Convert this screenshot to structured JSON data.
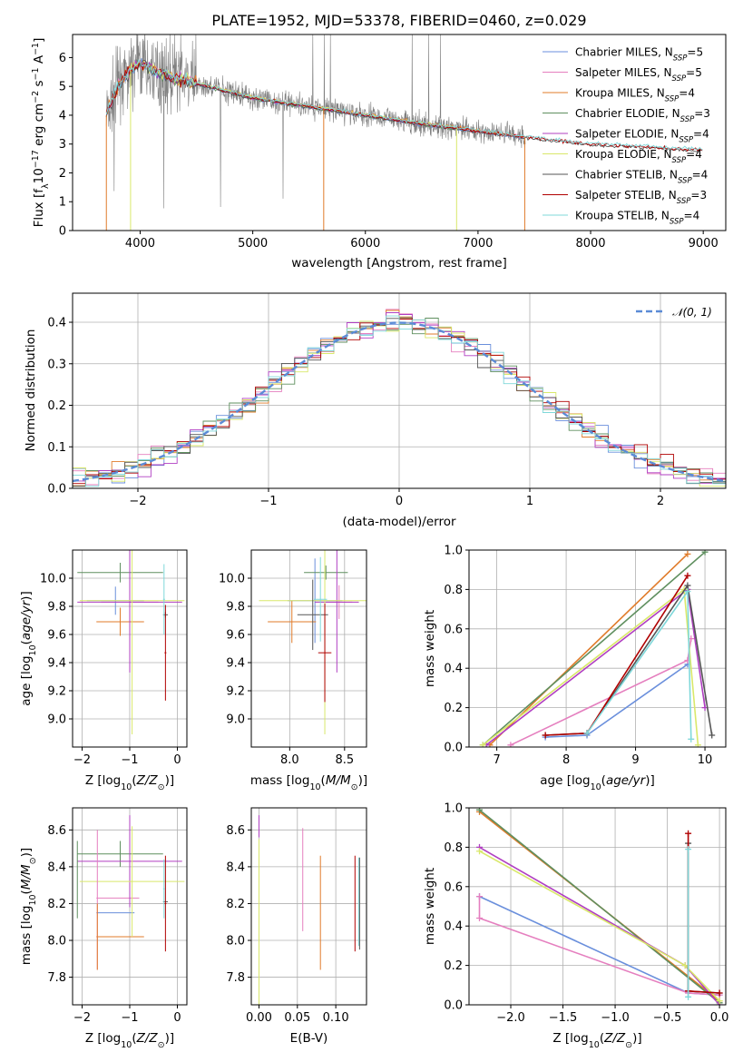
{
  "figure": {
    "title": "PLATE=1952, MJD=53378, FIBERID=0460, z=0.029"
  },
  "series_colors": {
    "Chabrier MILES": "#6a8fdc",
    "Salpeter MILES": "#e57fbf",
    "Kroupa MILES": "#e07b2a",
    "Chabrier ELODIE": "#5f8f5f",
    "Salpeter ELODIE": "#b03fc2",
    "Kroupa ELODIE": "#d9e86a",
    "Chabrier STELIB": "#555555",
    "Salpeter STELIB": "#b00000",
    "Kroupa STELIB": "#7fd8da",
    "data": "#808080"
  },
  "chart_data": [
    {
      "id": "spectrum",
      "type": "line",
      "xlabel": "wavelength [Angstrom, rest frame]",
      "ylabel": "Flux [f_λ 10^-17 erg cm^-2 s^-1 A^-1]",
      "xlim": [
        3400,
        9200
      ],
      "ylim": [
        0,
        6.8
      ],
      "xticks": [
        4000,
        5000,
        6000,
        7000,
        8000,
        9000
      ],
      "yticks": [
        0,
        1,
        2,
        3,
        4,
        5,
        6
      ],
      "grid": false,
      "legend_position": "upper-right",
      "legend": [
        {
          "model": "Chabrier MILES",
          "nssp": "5"
        },
        {
          "model": "Salpeter MILES",
          "nssp": "5"
        },
        {
          "model": "Kroupa MILES",
          "nssp": "4"
        },
        {
          "model": "Chabrier ELODIE",
          "nssp": "3"
        },
        {
          "model": "Salpeter ELODIE",
          "nssp": "4"
        },
        {
          "model": "Kroupa ELODIE",
          "nssp": "4"
        },
        {
          "model": "Chabrier STELIB",
          "nssp": "4"
        },
        {
          "model": "Salpeter STELIB",
          "nssp": "3"
        },
        {
          "model": "Kroupa STELIB",
          "nssp": "4"
        }
      ],
      "model_continuum": [
        [
          3700,
          4.0
        ],
        [
          3800,
          5.0
        ],
        [
          3900,
          5.5
        ],
        [
          4000,
          5.8
        ],
        [
          4100,
          5.6
        ],
        [
          4300,
          5.3
        ],
        [
          4500,
          5.1
        ],
        [
          4700,
          4.9
        ],
        [
          5000,
          4.6
        ],
        [
          5500,
          4.3
        ],
        [
          6000,
          4.0
        ],
        [
          6500,
          3.7
        ],
        [
          7000,
          3.45
        ],
        [
          7400,
          3.25
        ],
        [
          8000,
          3.0
        ],
        [
          8500,
          2.9
        ],
        [
          9000,
          2.8
        ]
      ],
      "data_range": [
        3700,
        7420
      ],
      "model_ranges": {
        "MILES": [
          3700,
          7420
        ],
        "ELODIE": [
          3900,
          6800
        ],
        "STELIB": [
          3700,
          9000
        ]
      }
    },
    {
      "id": "residuals",
      "type": "line",
      "xlabel": "(data-model)/error",
      "ylabel": "Normed distribution",
      "xlim": [
        -2.5,
        2.5
      ],
      "ylim": [
        0,
        0.47
      ],
      "xticks": [
        -2,
        -1,
        0,
        1,
        2
      ],
      "yticks": [
        0.0,
        0.1,
        0.2,
        0.3,
        0.4
      ],
      "grid": true,
      "legend_position": "upper-right",
      "gaussian_label": "𝒩(0, 1)",
      "bin_width": 0.1
    },
    {
      "id": "age_vs_Z",
      "type": "scatter",
      "xlabel": "Z [log10(Z/Z⊙)]",
      "ylabel": "age [log10(age/yr)]",
      "xlim": [
        -2.2,
        0.2
      ],
      "ylim": [
        8.8,
        10.2
      ],
      "xticks": [
        -2,
        -1,
        0
      ],
      "yticks": [
        9.0,
        9.2,
        9.4,
        9.6,
        9.8,
        10.0
      ],
      "grid": true,
      "errorbars": [
        {
          "model": "Chabrier MILES",
          "x": -1.3,
          "xerr": 0.6,
          "y": 9.84,
          "yerr": 0.1
        },
        {
          "model": "Salpeter MILES",
          "x": -1.0,
          "xerr": 0.6,
          "y": 9.83,
          "yerr": 0.15
        },
        {
          "model": "Kroupa MILES",
          "x": -1.2,
          "xerr": 0.5,
          "y": 9.69,
          "yerr": 0.1
        },
        {
          "model": "Chabrier ELODIE",
          "x": -1.2,
          "xerr": 0.9,
          "y": 10.04,
          "yerr": 0.07
        },
        {
          "model": "Salpeter ELODIE",
          "x": -1.0,
          "xerr": 1.1,
          "y": 9.83,
          "yerr": 0.5
        },
        {
          "model": "Kroupa ELODIE",
          "x": -0.95,
          "xerr": 1.1,
          "y": 9.84,
          "yerr": 0.95
        },
        {
          "model": "Chabrier STELIB",
          "x": -0.25,
          "xerr": 0.05,
          "y": 9.74,
          "yerr": 0.02
        },
        {
          "model": "Salpeter STELIB",
          "x": -0.25,
          "xerr": 0.02,
          "y": 9.47,
          "yerr": 0.34
        },
        {
          "model": "Kroupa STELIB",
          "x": -0.28,
          "xerr": 0.02,
          "y": 9.85,
          "yerr": 0.25
        }
      ]
    },
    {
      "id": "age_vs_mass",
      "type": "scatter",
      "xlabel": "mass [log10(M/M⊙)]",
      "ylabel": "",
      "xlim": [
        7.65,
        8.7
      ],
      "ylim": [
        8.8,
        10.2
      ],
      "xticks": [
        8.0,
        8.5
      ],
      "yticks": [
        9.0,
        9.2,
        9.4,
        9.6,
        9.8,
        10.0
      ],
      "grid": true,
      "errorbars": [
        {
          "model": "Chabrier MILES",
          "x": 8.23,
          "xerr": 0.25,
          "y": 9.84,
          "yerr": 0.3
        },
        {
          "model": "Salpeter MILES",
          "x": 8.45,
          "xerr": 0.12,
          "y": 9.83,
          "yerr": 0.12
        },
        {
          "model": "Kroupa MILES",
          "x": 8.02,
          "xerr": 0.22,
          "y": 9.69,
          "yerr": 0.15
        },
        {
          "model": "Chabrier ELODIE",
          "x": 8.33,
          "xerr": 0.2,
          "y": 10.04,
          "yerr": 0.05
        },
        {
          "model": "Salpeter ELODIE",
          "x": 8.43,
          "xerr": 0.2,
          "y": 9.83,
          "yerr": 0.5
        },
        {
          "model": "Kroupa ELODIE",
          "x": 8.32,
          "xerr": 0.6,
          "y": 9.84,
          "yerr": 0.95
        },
        {
          "model": "Chabrier STELIB",
          "x": 8.21,
          "xerr": 0.14,
          "y": 9.74,
          "yerr": 0.25
        },
        {
          "model": "Salpeter STELIB",
          "x": 8.32,
          "xerr": 0.06,
          "y": 9.47,
          "yerr": 0.35
        },
        {
          "model": "Kroupa STELIB",
          "x": 8.28,
          "xerr": 0.06,
          "y": 9.85,
          "yerr": 0.3
        }
      ]
    },
    {
      "id": "mass_weight_vs_age",
      "type": "line",
      "xlabel": "age [log10(age/yr)]",
      "ylabel": "mass weight",
      "xlim": [
        6.6,
        10.3
      ],
      "ylim": [
        0,
        1.0
      ],
      "xticks": [
        7,
        8,
        9,
        10
      ],
      "yticks": [
        0.0,
        0.2,
        0.4,
        0.6,
        0.8,
        1.0
      ],
      "grid": true,
      "series": [
        {
          "model": "Chabrier MILES",
          "x": [
            7.7,
            8.3,
            9.75
          ],
          "y": [
            0.05,
            0.06,
            0.42
          ]
        },
        {
          "model": "Salpeter MILES",
          "x": [
            7.2,
            9.75,
            9.8
          ],
          "y": [
            0.01,
            0.44,
            0.55
          ]
        },
        {
          "model": "Kroupa MILES",
          "x": [
            6.9,
            9.75
          ],
          "y": [
            0.01,
            0.98
          ]
        },
        {
          "model": "Chabrier ELODIE",
          "x": [
            6.8,
            10.0
          ],
          "y": [
            0.01,
            0.99
          ]
        },
        {
          "model": "Salpeter ELODIE",
          "x": [
            6.85,
            9.75,
            10.0
          ],
          "y": [
            0.01,
            0.8,
            0.2
          ]
        },
        {
          "model": "Kroupa ELODIE",
          "x": [
            6.8,
            9.7,
            9.9
          ],
          "y": [
            0.01,
            0.8,
            0.01
          ]
        },
        {
          "model": "Chabrier STELIB",
          "x": [
            7.7,
            8.3,
            9.75,
            10.1
          ],
          "y": [
            0.06,
            0.07,
            0.82,
            0.06
          ]
        },
        {
          "model": "Salpeter STELIB",
          "x": [
            7.7,
            8.3,
            9.75
          ],
          "y": [
            0.06,
            0.07,
            0.87
          ]
        },
        {
          "model": "Kroupa STELIB",
          "x": [
            8.3,
            9.75,
            9.8
          ],
          "y": [
            0.07,
            0.79,
            0.04
          ]
        }
      ]
    },
    {
      "id": "mass_vs_Z",
      "type": "scatter",
      "xlabel": "Z [log10(Z/Z⊙)]",
      "ylabel": "mass [log10(M/M⊙)]",
      "xlim": [
        -2.2,
        0.2
      ],
      "ylim": [
        7.65,
        8.72
      ],
      "xticks": [
        -2,
        -1,
        0
      ],
      "yticks": [
        7.8,
        8.0,
        8.2,
        8.4,
        8.6
      ],
      "grid": true,
      "errorbars": [
        {
          "model": "Chabrier MILES",
          "x": -1.3,
          "xerr": 0.4,
          "y": 8.15,
          "yerr": 0.0
        },
        {
          "model": "Salpeter MILES",
          "x": -1.25,
          "xerr": 0.45,
          "y": 8.23,
          "yerr": 0.0
        },
        {
          "model": "Kroupa MILES",
          "x": -1.2,
          "xerr": 0.5,
          "y": 8.02,
          "yerr": 0.0
        },
        {
          "model": "Chabrier ELODIE",
          "x": -1.2,
          "xerr": 0.9,
          "y": 8.47,
          "yerr": 0.07
        },
        {
          "model": "Salpeter ELODIE",
          "x": -1.0,
          "xerr": 1.1,
          "y": 8.43,
          "yerr": 0.25
        },
        {
          "model": "Kroupa ELODIE",
          "x": -0.95,
          "xerr": 1.1,
          "y": 8.32,
          "yerr": 0.3
        },
        {
          "model": "Chabrier STELIB",
          "x": -0.25,
          "xerr": 0.05,
          "y": 8.21,
          "yerr": 0.0
        },
        {
          "model": "Salpeter STELIB",
          "x": -0.25,
          "xerr": 0.02,
          "y": 8.2,
          "yerr": 0.26
        },
        {
          "model": "Kroupa STELIB",
          "x": -0.28,
          "xerr": 0.02,
          "y": 8.28,
          "yerr": 0.16
        },
        {
          "model": "Salpeter MILES",
          "x": -1.68,
          "xerr": 0.0,
          "y": 8.22,
          "yerr": 0.38
        },
        {
          "model": "Kroupa MILES",
          "x": -1.68,
          "xerr": 0.0,
          "y": 8.02,
          "yerr": 0.18
        },
        {
          "model": "Chabrier ELODIE",
          "x": -2.1,
          "xerr": 0.0,
          "y": 8.33,
          "yerr": 0.21
        }
      ]
    },
    {
      "id": "mass_vs_EBV",
      "type": "scatter",
      "xlabel": "E(B-V)",
      "ylabel": "",
      "xlim": [
        -0.01,
        0.14
      ],
      "ylim": [
        7.65,
        8.72
      ],
      "xticks": [
        0.0,
        0.05,
        0.1
      ],
      "yticks": [
        7.8,
        8.0,
        8.2,
        8.4,
        8.6
      ],
      "grid": true,
      "errorbars": [
        {
          "model": "Kroupa ELODIE",
          "x": 0.0,
          "y": 8.1,
          "yerr": 0.45
        },
        {
          "model": "Salpeter ELODIE",
          "x": 0.0,
          "y": 8.62,
          "yerr": 0.06
        },
        {
          "model": "Salpeter MILES",
          "x": 0.057,
          "y": 8.33,
          "yerr": 0.28
        },
        {
          "model": "Kroupa MILES",
          "x": 0.08,
          "y": 8.15,
          "yerr": 0.31
        },
        {
          "model": "Salpeter STELIB",
          "x": 0.125,
          "y": 8.2,
          "yerr": 0.26
        },
        {
          "model": "Kroupa STELIB",
          "x": 0.13,
          "y": 8.21,
          "yerr": 0.24
        },
        {
          "model": "Chabrier STELIB",
          "x": 0.131,
          "y": 8.2,
          "yerr": 0.25
        }
      ]
    },
    {
      "id": "mass_weight_vs_Z",
      "type": "line",
      "xlabel": "Z [log10(Z/Z⊙)]",
      "ylabel": "mass weight",
      "xlim": [
        -2.4,
        0.06
      ],
      "ylim": [
        0,
        1.0
      ],
      "xticks": [
        -2.0,
        -1.5,
        -1.0,
        -0.5,
        0.0
      ],
      "yticks": [
        0.0,
        0.2,
        0.4,
        0.6,
        0.8,
        1.0
      ],
      "grid": true,
      "series": [
        {
          "model": "Chabrier MILES",
          "x": [
            -2.3,
            -0.3,
            0.0
          ],
          "y": [
            0.55,
            0.06,
            0.05
          ]
        },
        {
          "model": "Salpeter MILES",
          "x": [
            -2.3,
            -2.3,
            -0.3,
            0.0
          ],
          "y": [
            0.55,
            0.44,
            0.06,
            0.05
          ]
        },
        {
          "model": "Kroupa MILES",
          "x": [
            -2.3,
            0.0
          ],
          "y": [
            0.98,
            0.02
          ]
        },
        {
          "model": "Chabrier ELODIE",
          "x": [
            -2.3,
            0.0
          ],
          "y": [
            0.99,
            0.01
          ]
        },
        {
          "model": "Salpeter ELODIE",
          "x": [
            -2.3,
            -0.33,
            0.0
          ],
          "y": [
            0.8,
            0.2,
            0.0
          ]
        },
        {
          "model": "Kroupa ELODIE",
          "x": [
            -2.3,
            -0.33,
            0.0
          ],
          "y": [
            0.78,
            0.2,
            0.02
          ]
        },
        {
          "model": "Chabrier STELIB",
          "x": [
            -0.3,
            -0.3,
            0.0
          ],
          "y": [
            0.82,
            0.07,
            0.06
          ]
        },
        {
          "model": "Salpeter STELIB",
          "x": [
            -0.3,
            -0.3,
            0.0
          ],
          "y": [
            0.87,
            0.07,
            0.06
          ]
        },
        {
          "model": "Kroupa STELIB",
          "x": [
            -0.3,
            -0.3
          ],
          "y": [
            0.79,
            0.04
          ]
        }
      ]
    }
  ]
}
